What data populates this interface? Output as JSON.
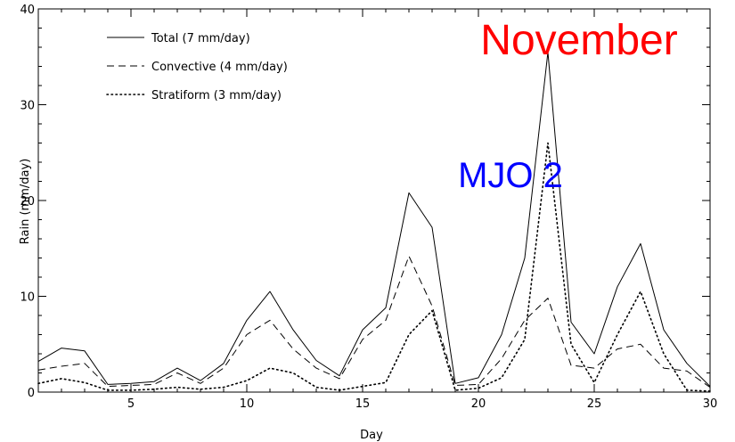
{
  "chart_data": {
    "type": "line",
    "xlabel": "Day",
    "ylabel": "Rain (mm/day)",
    "xlim": [
      1,
      30
    ],
    "ylim": [
      0,
      40
    ],
    "xticks": [
      5,
      10,
      15,
      20,
      25,
      30
    ],
    "yticks": [
      0,
      10,
      20,
      30,
      40
    ],
    "x": [
      1,
      2,
      3,
      4,
      5,
      6,
      7,
      8,
      9,
      10,
      11,
      12,
      13,
      14,
      15,
      16,
      17,
      18,
      19,
      20,
      21,
      22,
      23,
      24,
      25,
      26,
      27,
      28,
      29,
      30
    ],
    "series": [
      {
        "name": "Total (7 mm/day)",
        "style": "solid",
        "values": [
          3.2,
          4.6,
          4.3,
          0.8,
          0.9,
          1.1,
          2.5,
          1.2,
          3.0,
          7.5,
          10.5,
          6.5,
          3.3,
          1.7,
          6.5,
          8.8,
          20.8,
          17.2,
          0.9,
          1.5,
          6.0,
          14.0,
          35.5,
          7.3,
          4.0,
          11.0,
          15.5,
          6.5,
          3.0,
          0.6
        ]
      },
      {
        "name": "Convective (4 mm/day)",
        "style": "dashed",
        "values": [
          2.3,
          2.7,
          3.0,
          0.6,
          0.7,
          0.8,
          2.0,
          0.9,
          2.5,
          6.0,
          7.5,
          4.5,
          2.5,
          1.4,
          5.5,
          7.5,
          14.2,
          9.0,
          0.7,
          0.8,
          3.5,
          7.5,
          9.8,
          2.8,
          2.5,
          4.5,
          5.0,
          2.5,
          2.2,
          0.5
        ]
      },
      {
        "name": "Stratiform (3 mm/day)",
        "style": "dotted",
        "values": [
          0.9,
          1.4,
          1.0,
          0.2,
          0.2,
          0.3,
          0.5,
          0.3,
          0.5,
          1.2,
          2.5,
          2.0,
          0.5,
          0.2,
          0.6,
          1.0,
          6.0,
          8.5,
          0.2,
          0.4,
          1.5,
          5.5,
          26.0,
          5.0,
          1.0,
          6.0,
          10.5,
          4.0,
          0.2,
          0.1
        ]
      }
    ],
    "legend_position": "top-left",
    "annotations": [
      {
        "text": "November",
        "color": "#ff0000"
      },
      {
        "text": "MJO 2",
        "color": "#0000ff"
      }
    ]
  }
}
